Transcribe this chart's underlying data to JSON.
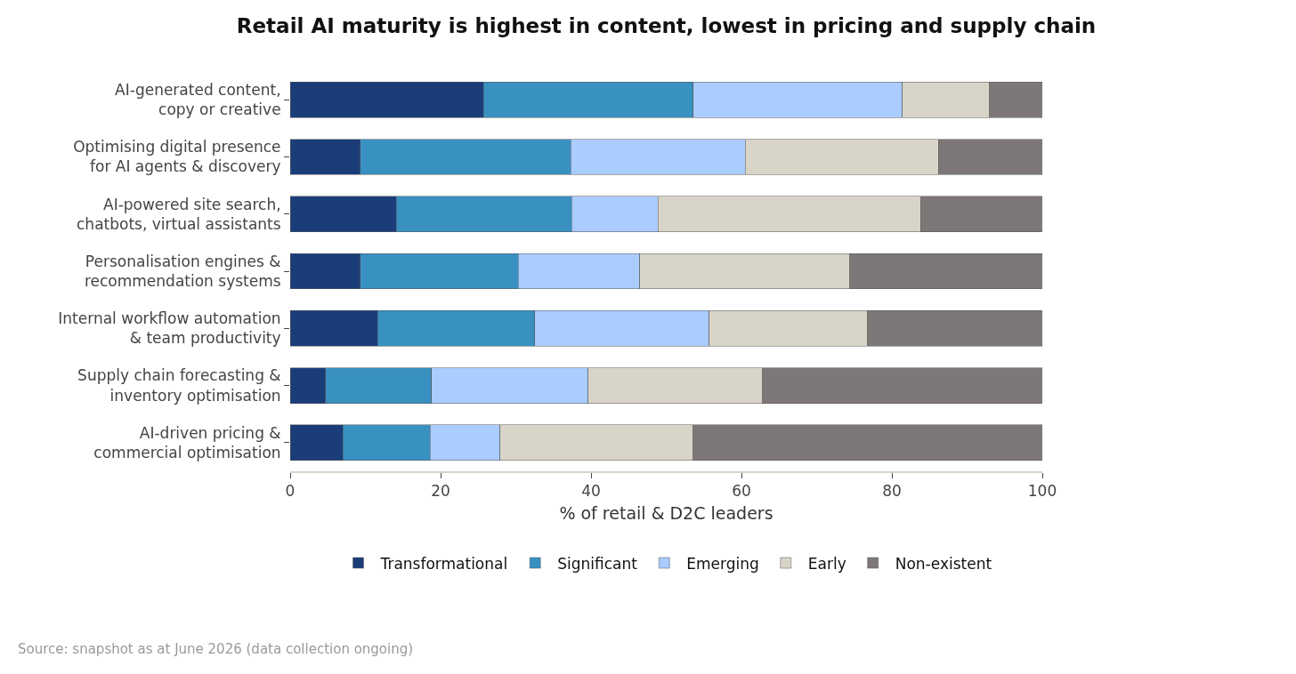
{
  "chart_data": {
    "type": "bar",
    "orientation": "horizontal",
    "stacked": true,
    "title": "Retail AI maturity is highest in content, lowest in pricing and supply chain",
    "xlabel": "% of retail & D2C leaders",
    "categories": [
      "AI-generated content,\ncopy or creative",
      "Optimising digital presence\nfor AI agents & discovery",
      "AI-powered site search,\nchatbots, virtual assistants",
      "Personalisation engines &\nrecommendation systems",
      "Internal workflow automation\n& team productivity",
      "Supply chain forecasting &\ninventory optimisation",
      "AI-driven pricing &\ncommercial optimisation"
    ],
    "series": [
      {
        "name": "Transformational",
        "color": "#1a3d7a",
        "values": [
          25.7,
          9.3,
          14.1,
          9.3,
          11.6,
          4.7,
          7.0
        ]
      },
      {
        "name": "Significant",
        "color": "#3891c1",
        "values": [
          27.9,
          28.0,
          23.3,
          21.0,
          20.9,
          14.1,
          11.6
        ]
      },
      {
        "name": "Emerging",
        "color": "#aaccff",
        "values": [
          27.8,
          23.2,
          11.5,
          16.2,
          23.2,
          20.8,
          9.3
        ]
      },
      {
        "name": "Early",
        "color": "#d8d4c8",
        "values": [
          11.6,
          25.7,
          34.9,
          27.9,
          21.1,
          23.2,
          25.7
        ]
      },
      {
        "name": "Non-existent",
        "color": "#7d7877",
        "values": [
          7.0,
          13.8,
          16.2,
          25.6,
          23.2,
          37.2,
          46.4
        ]
      }
    ],
    "xlim": [
      0,
      100
    ],
    "xticks": [
      0,
      20,
      40,
      60,
      80,
      100
    ],
    "grid": false,
    "legend": "bottom",
    "annotations": [
      "Source: snapshot as at June 2026 (data collection ongoing)"
    ]
  }
}
